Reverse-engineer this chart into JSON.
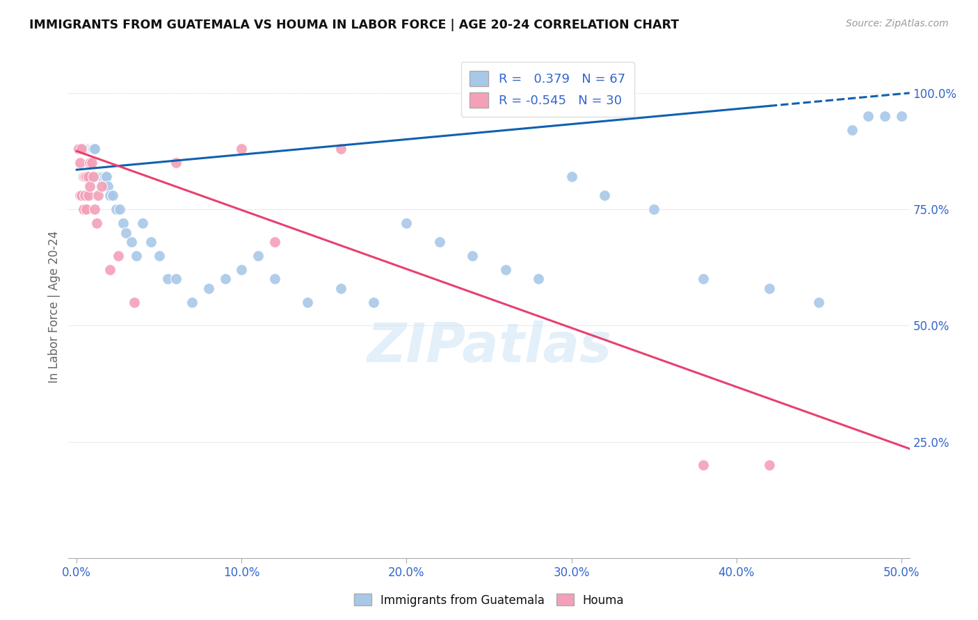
{
  "title": "IMMIGRANTS FROM GUATEMALA VS HOUMA IN LABOR FORCE | AGE 20-24 CORRELATION CHART",
  "source": "Source: ZipAtlas.com",
  "ylabel": "In Labor Force | Age 20-24",
  "x_ticks": [
    "0.0%",
    "10.0%",
    "20.0%",
    "30.0%",
    "40.0%",
    "50.0%"
  ],
  "x_tick_vals": [
    0.0,
    0.1,
    0.2,
    0.3,
    0.4,
    0.5
  ],
  "y_ticks_right": [
    "100.0%",
    "75.0%",
    "50.0%",
    "25.0%"
  ],
  "y_tick_vals_right": [
    1.0,
    0.75,
    0.5,
    0.25
  ],
  "xlim": [
    -0.005,
    0.505
  ],
  "ylim": [
    0.0,
    1.08
  ],
  "guatemala_R": 0.379,
  "guatemala_N": 67,
  "houma_R": -0.545,
  "houma_N": 30,
  "guatemala_color": "#a8c8e8",
  "houma_color": "#f4a0b8",
  "trendline_guatemala_color": "#1060b0",
  "trendline_houma_color": "#e84070",
  "watermark": "ZIPatlas",
  "guatemala_scatter_x": [
    0.001,
    0.002,
    0.002,
    0.003,
    0.003,
    0.003,
    0.004,
    0.004,
    0.005,
    0.005,
    0.006,
    0.006,
    0.007,
    0.007,
    0.008,
    0.008,
    0.009,
    0.009,
    0.01,
    0.01,
    0.011,
    0.011,
    0.012,
    0.013,
    0.014,
    0.015,
    0.016,
    0.017,
    0.018,
    0.019,
    0.02,
    0.022,
    0.024,
    0.026,
    0.028,
    0.03,
    0.033,
    0.036,
    0.04,
    0.045,
    0.05,
    0.055,
    0.06,
    0.07,
    0.08,
    0.09,
    0.1,
    0.11,
    0.12,
    0.14,
    0.16,
    0.18,
    0.2,
    0.22,
    0.24,
    0.26,
    0.28,
    0.3,
    0.32,
    0.35,
    0.38,
    0.42,
    0.45,
    0.47,
    0.48,
    0.49,
    0.5
  ],
  "guatemala_scatter_y": [
    0.88,
    0.88,
    0.88,
    0.88,
    0.88,
    0.88,
    0.88,
    0.88,
    0.88,
    0.88,
    0.88,
    0.88,
    0.88,
    0.88,
    0.88,
    0.88,
    0.88,
    0.88,
    0.88,
    0.88,
    0.88,
    0.88,
    0.82,
    0.82,
    0.82,
    0.82,
    0.82,
    0.82,
    0.82,
    0.8,
    0.78,
    0.78,
    0.75,
    0.75,
    0.72,
    0.7,
    0.68,
    0.65,
    0.72,
    0.68,
    0.65,
    0.6,
    0.6,
    0.55,
    0.58,
    0.6,
    0.62,
    0.65,
    0.6,
    0.55,
    0.58,
    0.55,
    0.72,
    0.68,
    0.65,
    0.62,
    0.6,
    0.82,
    0.78,
    0.75,
    0.6,
    0.58,
    0.55,
    0.92,
    0.95,
    0.95,
    0.95
  ],
  "houma_scatter_x": [
    0.001,
    0.002,
    0.002,
    0.003,
    0.003,
    0.004,
    0.004,
    0.005,
    0.005,
    0.006,
    0.006,
    0.007,
    0.007,
    0.008,
    0.008,
    0.009,
    0.01,
    0.011,
    0.012,
    0.013,
    0.015,
    0.02,
    0.025,
    0.035,
    0.06,
    0.1,
    0.12,
    0.16,
    0.38,
    0.42
  ],
  "houma_scatter_y": [
    0.88,
    0.85,
    0.78,
    0.88,
    0.78,
    0.82,
    0.75,
    0.82,
    0.78,
    0.82,
    0.75,
    0.82,
    0.78,
    0.85,
    0.8,
    0.85,
    0.82,
    0.75,
    0.72,
    0.78,
    0.8,
    0.62,
    0.65,
    0.55,
    0.85,
    0.88,
    0.68,
    0.88,
    0.2,
    0.2
  ],
  "guatemala_trendline_x0": 0.0,
  "guatemala_trendline_y0": 0.835,
  "guatemala_trendline_x1": 0.505,
  "guatemala_trendline_y1": 1.0,
  "houma_trendline_x0": 0.0,
  "houma_trendline_y0": 0.875,
  "houma_trendline_x1": 0.505,
  "houma_trendline_y1": 0.235
}
